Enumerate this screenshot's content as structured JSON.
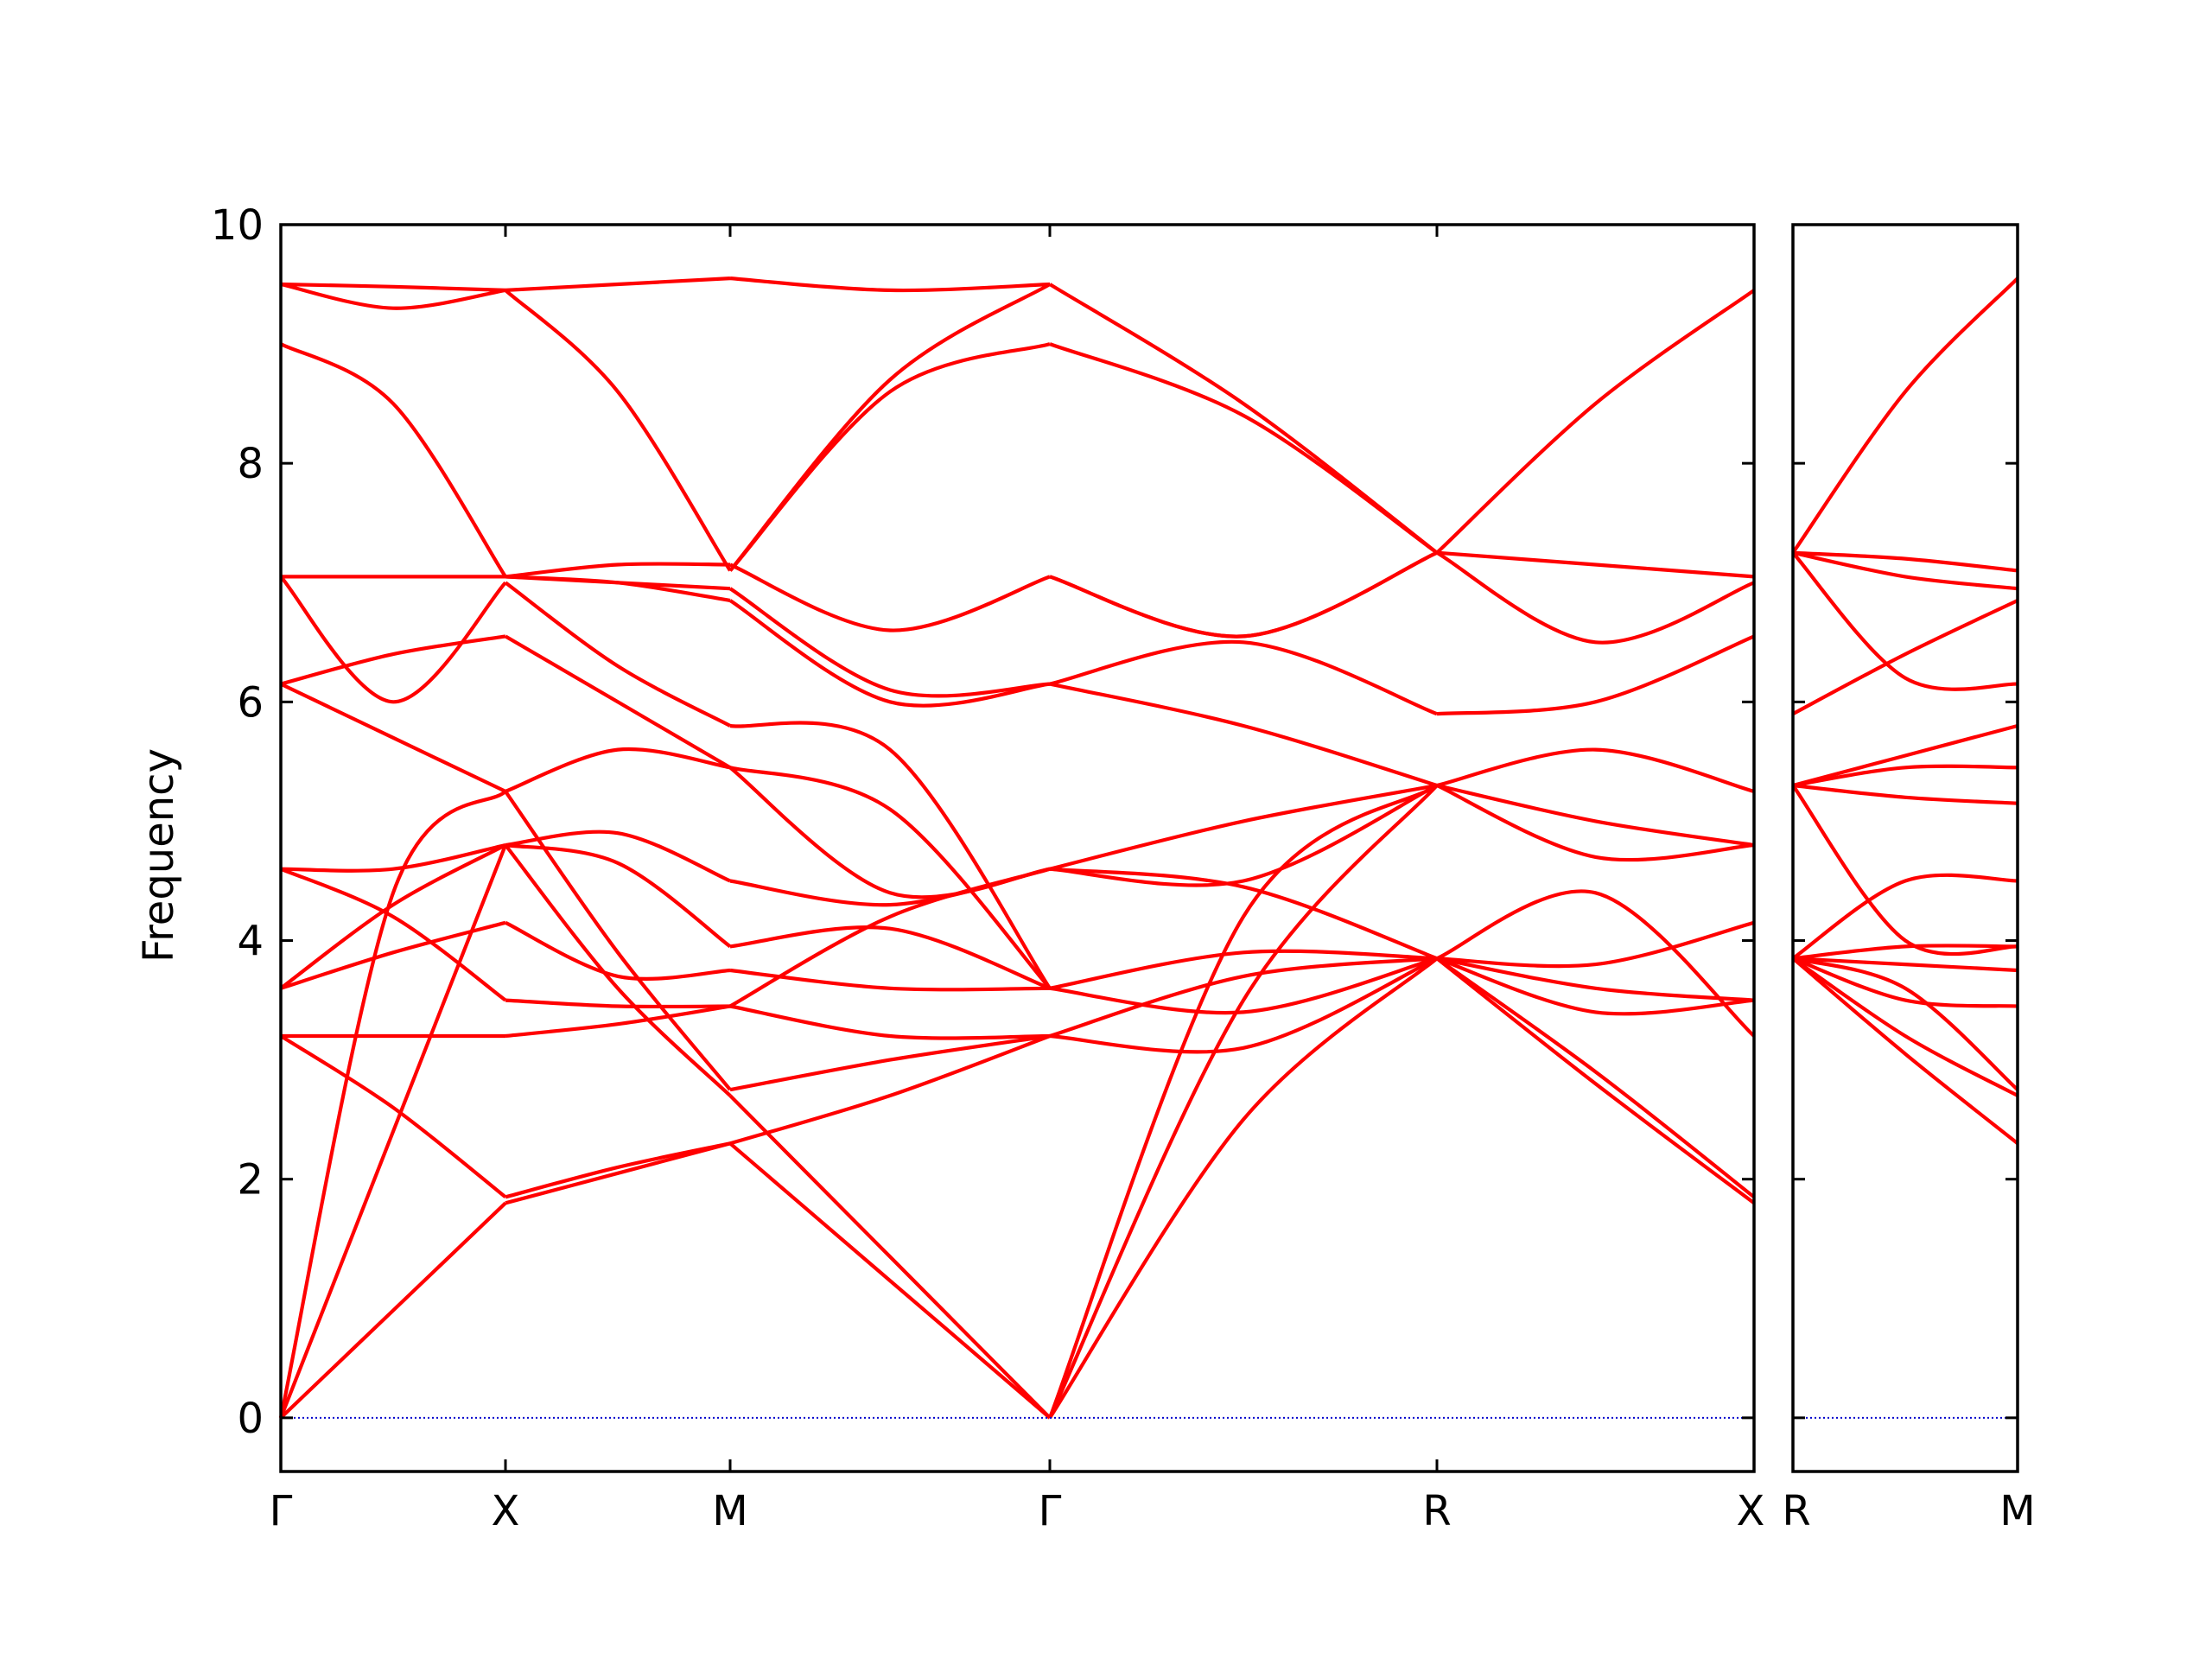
{
  "chart_data": {
    "type": "line",
    "ylabel": "Frequency",
    "xlabel": "",
    "title": "",
    "ylim": [
      -0.45,
      10
    ],
    "yticks": [
      0,
      2,
      4,
      6,
      8,
      10
    ],
    "grid": false,
    "colors": {
      "bands": "#ff0000",
      "zero_line": "#0000cc",
      "axes": "#000000"
    },
    "panels": [
      {
        "path_labels": [
          "Γ",
          "X",
          "M",
          "Γ",
          "R",
          "X"
        ],
        "segments": [
          {
            "from": "Γ",
            "to": "X",
            "x": [
              0,
              0.5,
              1
            ],
            "bands": [
              [
                0,
                0.9,
                1.8
              ],
              [
                0,
                2.4,
                4.8
              ],
              [
                0,
                4.4,
                5.25
              ],
              [
                3.2,
                2.6,
                1.85
              ],
              [
                3.2,
                3.2,
                3.2
              ],
              [
                3.6,
                3.9,
                4.15
              ],
              [
                3.6,
                4.3,
                4.8
              ],
              [
                4.6,
                4.2,
                3.5
              ],
              [
                4.6,
                4.6,
                4.8
              ],
              [
                6.15,
                5.7,
                5.25
              ],
              [
                6.15,
                6.4,
                6.55
              ],
              [
                7.05,
                6.0,
                7.0
              ],
              [
                7.05,
                7.05,
                7.05
              ],
              [
                9.0,
                8.5,
                7.05
              ],
              [
                9.5,
                9.3,
                9.45
              ],
              [
                9.5,
                9.48,
                9.45
              ]
            ]
          },
          {
            "from": "X",
            "to": "M",
            "x": [
              0,
              0.5,
              1
            ],
            "bands": [
              [
                1.8,
                2.05,
                2.3
              ],
              [
                1.85,
                2.1,
                2.3
              ],
              [
                4.8,
                3.6,
                2.7
              ],
              [
                5.25,
                3.9,
                2.75
              ],
              [
                3.2,
                3.3,
                3.45
              ],
              [
                3.5,
                3.45,
                3.45
              ],
              [
                4.15,
                3.7,
                3.75
              ],
              [
                4.8,
                4.65,
                3.95
              ],
              [
                4.8,
                4.9,
                4.5
              ],
              [
                5.25,
                5.6,
                5.45
              ],
              [
                6.55,
                6.0,
                5.45
              ],
              [
                7.0,
                6.3,
                5.8
              ],
              [
                7.05,
                7.0,
                6.95
              ],
              [
                7.05,
                7.15,
                7.15
              ],
              [
                7.05,
                7.0,
                6.85
              ],
              [
                9.45,
                8.6,
                7.1
              ],
              [
                9.45,
                9.5,
                9.55
              ]
            ]
          },
          {
            "from": "M",
            "to": "Γ",
            "x": [
              0,
              0.5,
              1
            ],
            "bands": [
              [
                2.3,
                1.15,
                0
              ],
              [
                2.3,
                2.7,
                3.2
              ],
              [
                2.7,
                1.35,
                0
              ],
              [
                2.75,
                3.0,
                3.2
              ],
              [
                3.45,
                3.2,
                3.2
              ],
              [
                3.45,
                4.2,
                4.6
              ],
              [
                3.75,
                3.6,
                3.6
              ],
              [
                3.95,
                4.1,
                3.6
              ],
              [
                4.5,
                4.3,
                4.6
              ],
              [
                5.45,
                4.4,
                4.6
              ],
              [
                5.45,
                5.1,
                3.6
              ],
              [
                5.8,
                5.6,
                3.6
              ],
              [
                6.85,
                6.0,
                6.15
              ],
              [
                6.95,
                6.1,
                6.15
              ],
              [
                7.15,
                6.6,
                7.05
              ],
              [
                7.1,
                8.6,
                9.0
              ],
              [
                7.1,
                8.7,
                9.5
              ],
              [
                9.55,
                9.45,
                9.5
              ]
            ]
          },
          {
            "from": "Γ",
            "to": "R",
            "x": [
              0,
              0.5,
              1
            ],
            "bands": [
              [
                0,
                2.5,
                3.85
              ],
              [
                0,
                3.5,
                5.3
              ],
              [
                0,
                4.2,
                5.3
              ],
              [
                3.2,
                3.1,
                3.85
              ],
              [
                3.2,
                3.7,
                3.85
              ],
              [
                3.6,
                3.9,
                3.85
              ],
              [
                3.6,
                3.4,
                3.85
              ],
              [
                4.6,
                4.45,
                3.85
              ],
              [
                4.6,
                4.5,
                5.3
              ],
              [
                4.6,
                5.0,
                5.3
              ],
              [
                6.15,
                5.8,
                5.3
              ],
              [
                6.15,
                6.5,
                5.9
              ],
              [
                7.05,
                6.55,
                7.25
              ],
              [
                7.05,
                6.55,
                7.25
              ],
              [
                9.0,
                8.4,
                7.25
              ],
              [
                9.5,
                8.5,
                7.25
              ]
            ]
          },
          {
            "from": "R",
            "to": "X",
            "x": [
              0,
              0.5,
              1
            ],
            "bands": [
              [
                3.85,
                2.8,
                1.8
              ],
              [
                3.85,
                2.9,
                1.85
              ],
              [
                3.85,
                4.4,
                3.2
              ],
              [
                3.85,
                3.4,
                3.5
              ],
              [
                3.85,
                3.6,
                3.5
              ],
              [
                3.85,
                3.8,
                4.15
              ],
              [
                5.3,
                4.7,
                4.8
              ],
              [
                5.3,
                5.0,
                4.8
              ],
              [
                5.3,
                5.6,
                5.25
              ],
              [
                5.9,
                6.0,
                6.55
              ],
              [
                7.25,
                6.5,
                7.0
              ],
              [
                7.25,
                7.15,
                7.05
              ],
              [
                7.25,
                8.5,
                9.45
              ]
            ]
          }
        ]
      },
      {
        "path_labels": [
          "R",
          "M"
        ],
        "segments": [
          {
            "from": "R",
            "to": "M",
            "x": [
              0,
              0.5,
              1
            ],
            "bands": [
              [
                3.85,
                3.05,
                2.3
              ],
              [
                3.85,
                3.2,
                2.7
              ],
              [
                3.85,
                3.6,
                2.75
              ],
              [
                3.85,
                3.5,
                3.45
              ],
              [
                3.85,
                3.8,
                3.75
              ],
              [
                3.85,
                3.95,
                3.95
              ],
              [
                3.85,
                4.5,
                4.5
              ],
              [
                5.3,
                4.0,
                3.95
              ],
              [
                5.3,
                5.2,
                5.15
              ],
              [
                5.3,
                5.45,
                5.45
              ],
              [
                5.3,
                5.55,
                5.8
              ],
              [
                5.9,
                6.4,
                6.85
              ],
              [
                7.25,
                6.2,
                6.15
              ],
              [
                7.25,
                7.05,
                6.95
              ],
              [
                7.25,
                7.2,
                7.1
              ],
              [
                7.25,
                8.6,
                9.55
              ]
            ]
          }
        ]
      }
    ]
  }
}
